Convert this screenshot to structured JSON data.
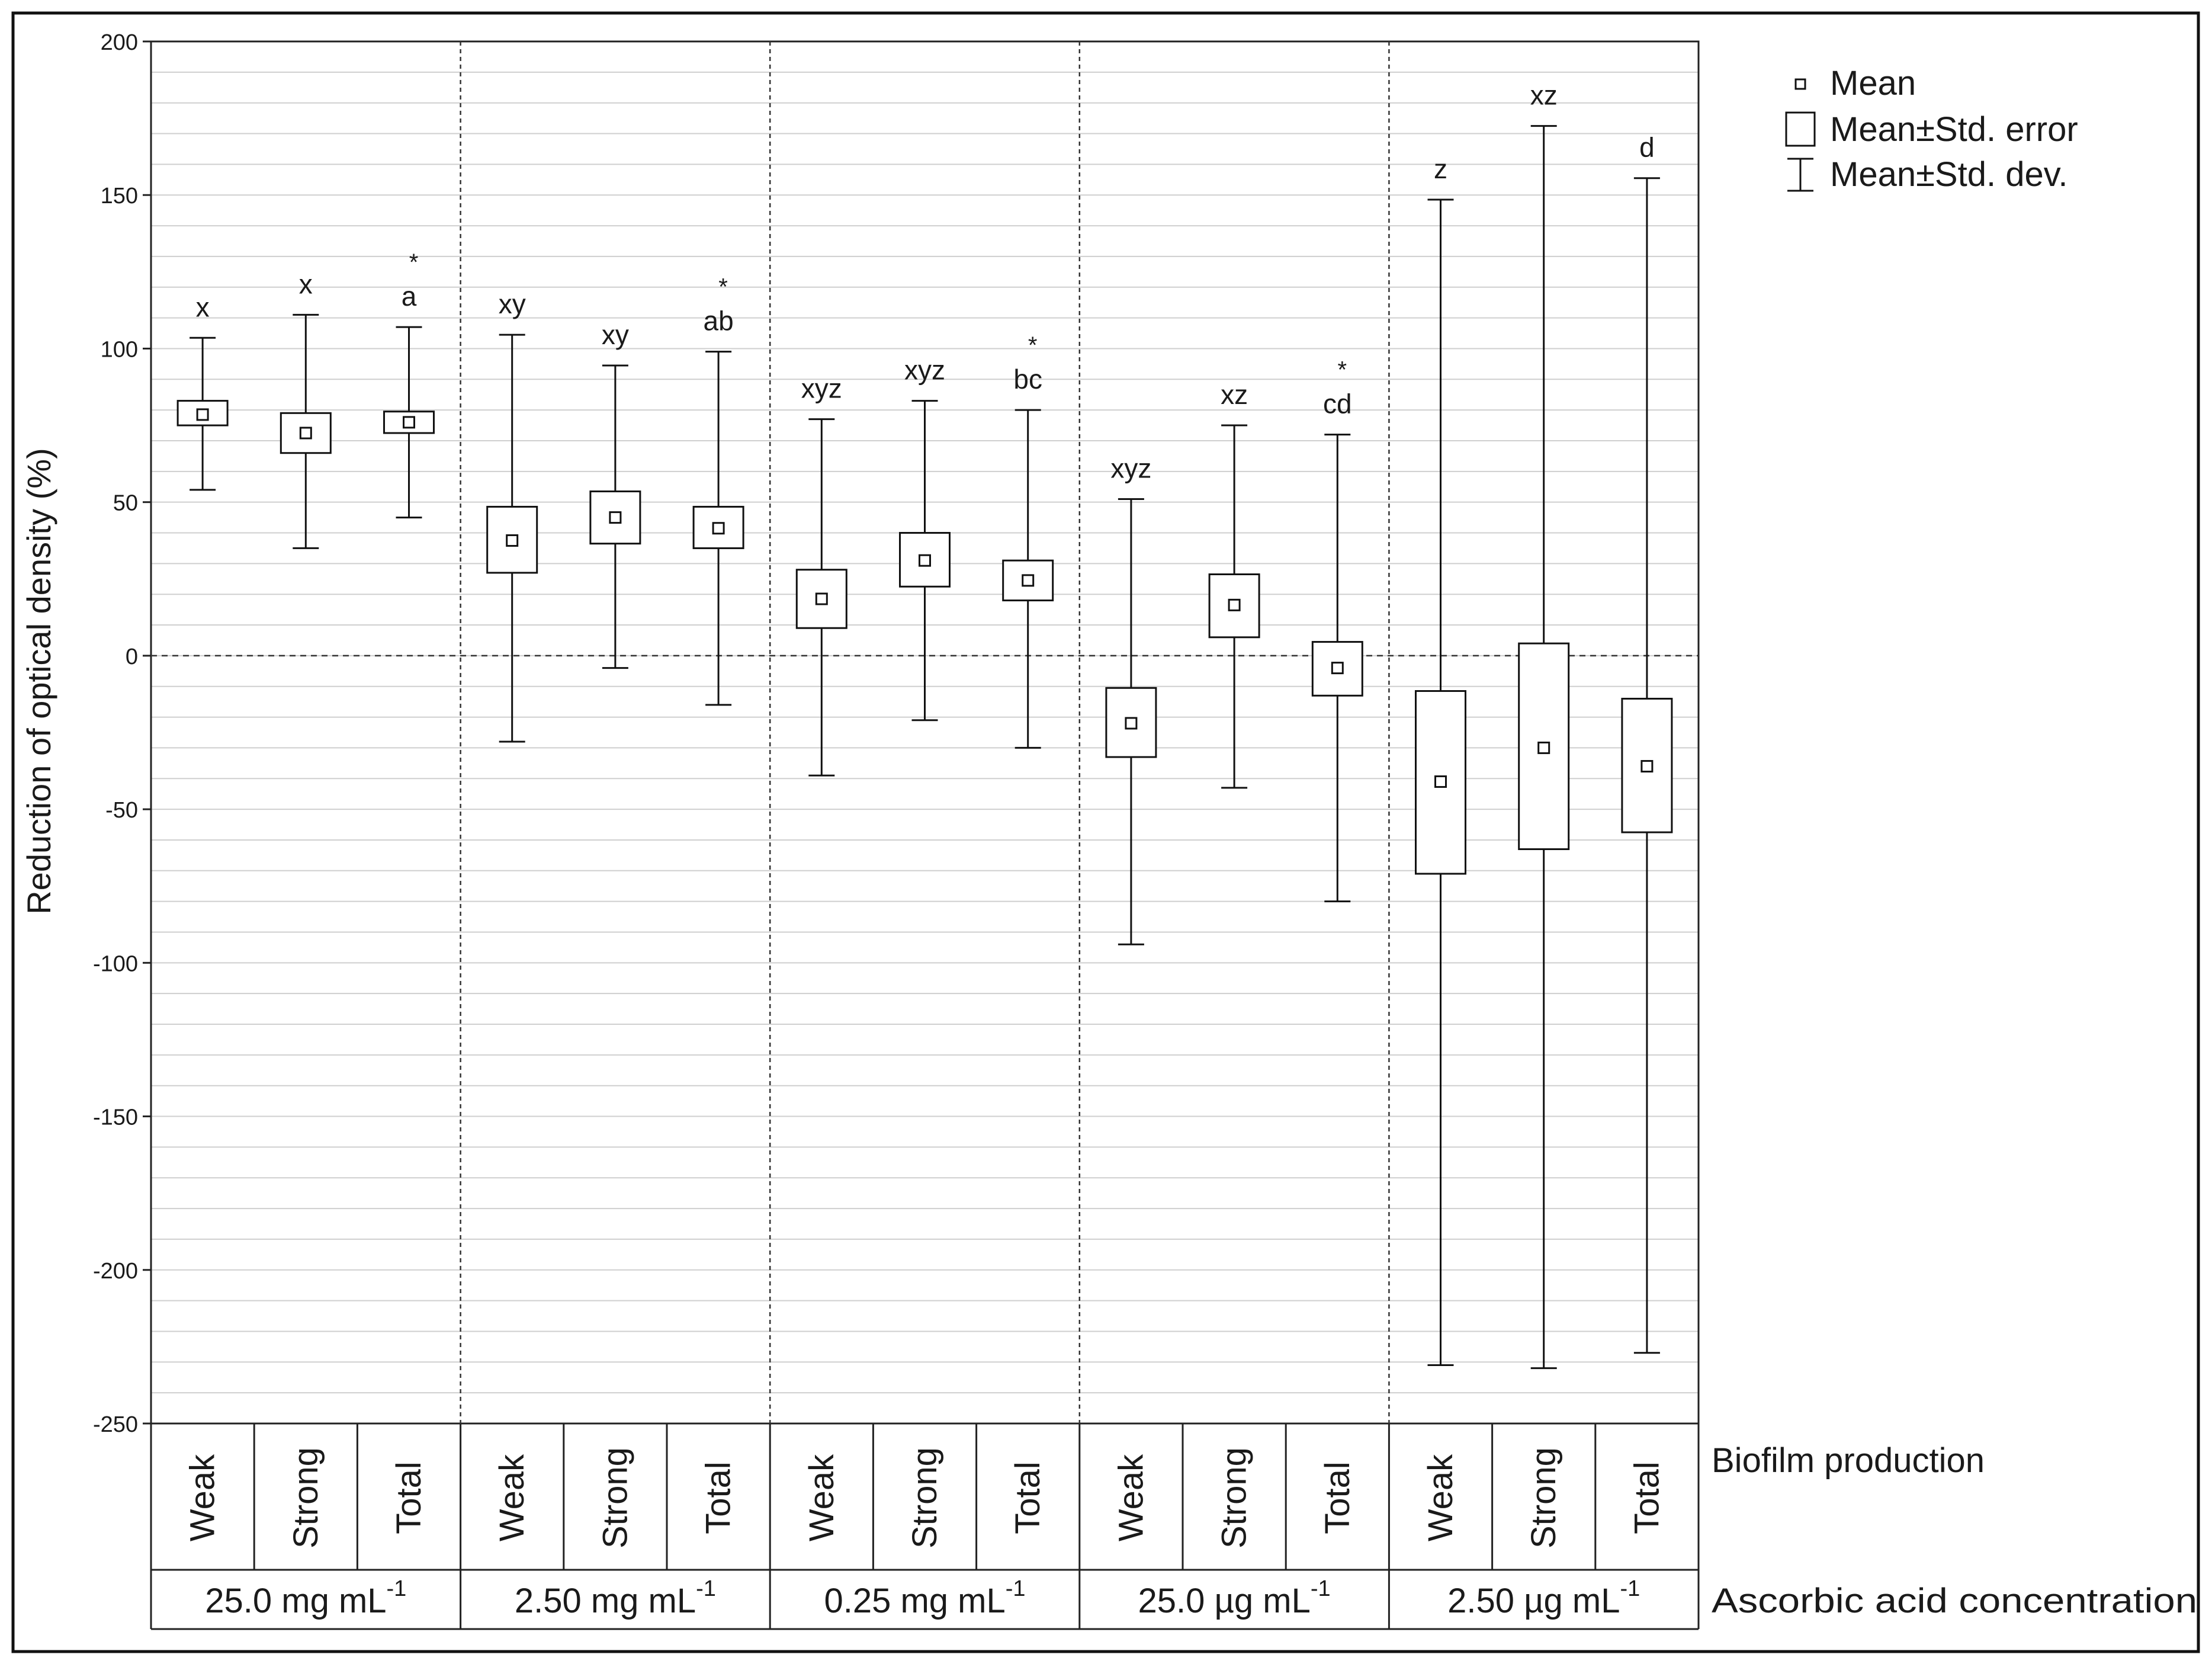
{
  "chart_data": {
    "type": "box",
    "ylabel": "Reduction of optical density (%)",
    "yticks": [
      200,
      150,
      100,
      50,
      0,
      -50,
      -100,
      -150,
      -200,
      -250
    ],
    "ylim": [
      -250,
      200
    ],
    "grid": true,
    "legend": {
      "position": "top-right",
      "entries": [
        "Mean",
        "Mean±Std. error",
        "Mean±Std. dev."
      ]
    },
    "row_labels": {
      "categories": "Biofilm production",
      "groups": "Ascorbic acid concentration"
    },
    "categories": [
      "Weak",
      "Strong",
      "Total"
    ],
    "groups": [
      {
        "name": "25.0 mg mL",
        "name_sup": "-1",
        "items": [
          {
            "category": "Weak",
            "mean": 78.5,
            "se_low": 75,
            "se_high": 83,
            "sd_low": 54,
            "sd_high": 103.5,
            "letters": "x",
            "star": false
          },
          {
            "category": "Strong",
            "mean": 72.5,
            "se_low": 66,
            "se_high": 79,
            "sd_low": 35,
            "sd_high": 111,
            "letters": "x",
            "star": false
          },
          {
            "category": "Total",
            "mean": 76,
            "se_low": 72.5,
            "se_high": 79.5,
            "sd_low": 45,
            "sd_high": 107,
            "letters": "a",
            "star": true
          }
        ]
      },
      {
        "name": "2.50 mg mL",
        "name_sup": "-1",
        "items": [
          {
            "category": "Weak",
            "mean": 37.5,
            "se_low": 27,
            "se_high": 48.5,
            "sd_low": -28,
            "sd_high": 104.5,
            "letters": "xy",
            "star": false
          },
          {
            "category": "Strong",
            "mean": 45,
            "se_low": 36.5,
            "se_high": 53.5,
            "sd_low": -4,
            "sd_high": 94.5,
            "letters": "xy",
            "star": false
          },
          {
            "category": "Total",
            "mean": 41.5,
            "se_low": 35,
            "se_high": 48.5,
            "sd_low": -16,
            "sd_high": 99,
            "letters": "ab",
            "star": true
          }
        ]
      },
      {
        "name": "0.25 mg mL",
        "name_sup": "-1",
        "items": [
          {
            "category": "Weak",
            "mean": 18.5,
            "se_low": 9,
            "se_high": 28,
            "sd_low": -39,
            "sd_high": 77,
            "letters": "xyz",
            "star": false
          },
          {
            "category": "Strong",
            "mean": 31,
            "se_low": 22.5,
            "se_high": 40,
            "sd_low": -21,
            "sd_high": 83,
            "letters": "xyz",
            "star": false
          },
          {
            "category": "Total",
            "mean": 24.5,
            "se_low": 18,
            "se_high": 31,
            "sd_low": -30,
            "sd_high": 80,
            "letters": "bc",
            "star": true
          }
        ]
      },
      {
        "name": "25.0 µg mL",
        "name_sup": "-1",
        "items": [
          {
            "category": "Weak",
            "mean": -22,
            "se_low": -33,
            "se_high": -10.5,
            "sd_low": -94,
            "sd_high": 51,
            "letters": "xyz",
            "star": false
          },
          {
            "category": "Strong",
            "mean": 16.5,
            "se_low": 6,
            "se_high": 26.5,
            "sd_low": -43,
            "sd_high": 75,
            "letters": "xz",
            "star": false
          },
          {
            "category": "Total",
            "mean": -4,
            "se_low": -13,
            "se_high": 4.5,
            "sd_low": -80,
            "sd_high": 72,
            "letters": "cd",
            "star": true
          }
        ]
      },
      {
        "name": "2.50 µg mL",
        "name_sup": "-1",
        "items": [
          {
            "category": "Weak",
            "mean": -41,
            "se_low": -71,
            "se_high": -11.5,
            "sd_low": -231,
            "sd_high": 148.5,
            "letters": "z",
            "star": false
          },
          {
            "category": "Strong",
            "mean": -30,
            "se_low": -63,
            "se_high": 4,
            "sd_low": -232,
            "sd_high": 172.5,
            "letters": "xz",
            "star": false
          },
          {
            "category": "Total",
            "mean": -36,
            "se_low": -57.5,
            "se_high": -14,
            "sd_low": -227,
            "sd_high": 155.5,
            "letters": "d",
            "star": false
          }
        ]
      }
    ]
  }
}
